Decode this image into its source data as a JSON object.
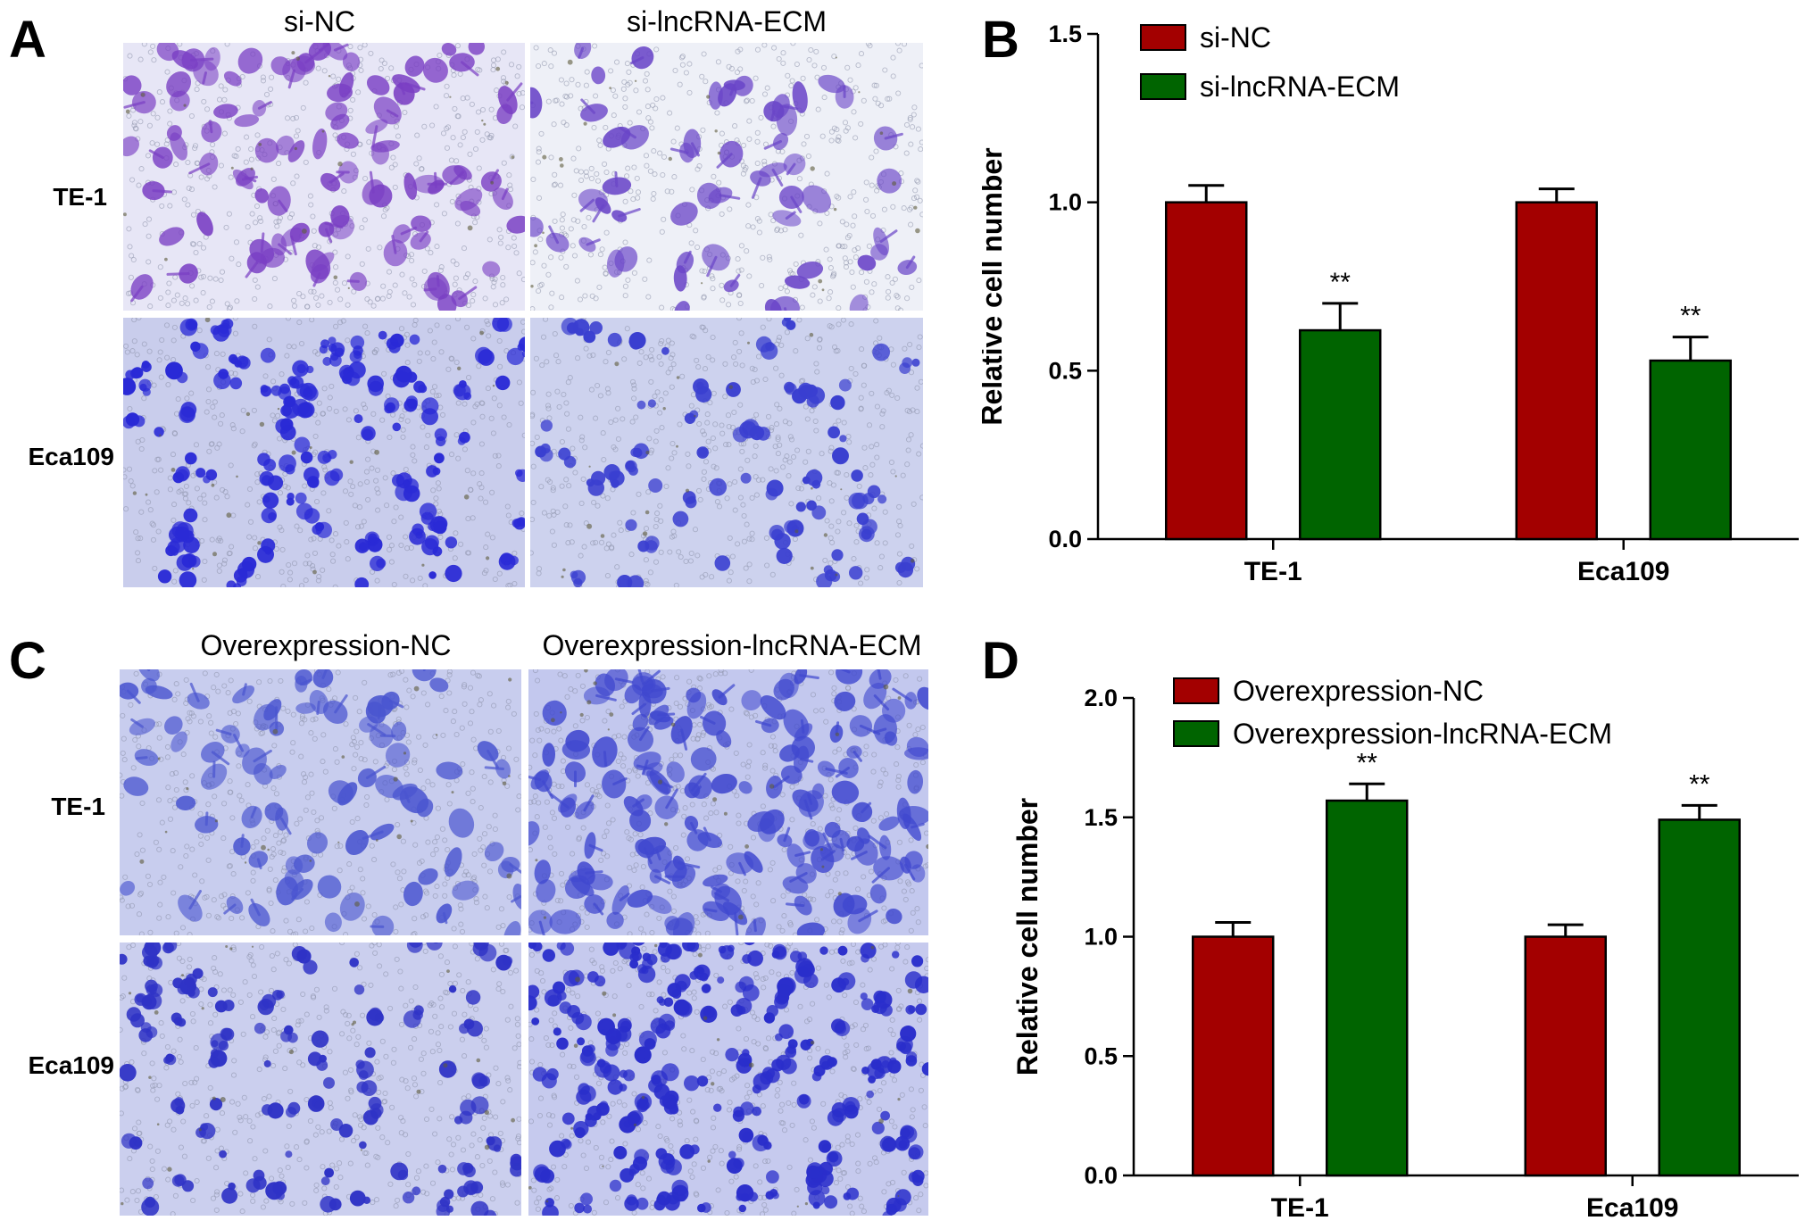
{
  "panel_letters": {
    "a": "A",
    "b": "B",
    "c": "C",
    "d": "D"
  },
  "panel_a": {
    "columns": [
      "si-NC",
      "si-lncRNA-ECM"
    ],
    "rows": [
      "TE-1",
      "Eca109"
    ],
    "micrographs": [
      {
        "name": "TE-1 si-NC",
        "stain": "#7a3fc4",
        "background": "#e7e6f6",
        "cell_count": 95,
        "style": "spread"
      },
      {
        "name": "TE-1 si-lncRNA-ECM",
        "stain": "#6a45c8",
        "background": "#eef0f7",
        "cell_count": 55,
        "style": "spread"
      },
      {
        "name": "Eca109 si-NC",
        "stain": "#2a2ad6",
        "background": "#c9cdec",
        "cell_count": 110,
        "style": "cluster"
      },
      {
        "name": "Eca109 si-lncRNA-ECM",
        "stain": "#3a3fd0",
        "background": "#cdd2ee",
        "cell_count": 60,
        "style": "cluster"
      }
    ]
  },
  "panel_c": {
    "columns": [
      "Overexpression-NC",
      "Overexpression-lncRNA-ECM"
    ],
    "rows": [
      "TE-1",
      "Eca109"
    ],
    "micrographs": [
      {
        "name": "TE-1 Overexpression-NC",
        "stain": "#4a55d0",
        "background": "#c8cdee",
        "cell_count": 80,
        "style": "spread"
      },
      {
        "name": "TE-1 Overexpression-lncRNA-ECM",
        "stain": "#4048cf",
        "background": "#c3c8ee",
        "cell_count": 150,
        "style": "spread"
      },
      {
        "name": "Eca109 Overexpression-NC",
        "stain": "#2f33c6",
        "background": "#cbcfee",
        "cell_count": 90,
        "style": "cluster"
      },
      {
        "name": "Eca109 Overexpression-lncRNA-ECM",
        "stain": "#2a2ecb",
        "background": "#c6caee",
        "cell_count": 170,
        "style": "cluster"
      }
    ]
  },
  "chart_data": [
    {
      "panel": "B",
      "type": "bar",
      "categories": [
        "TE-1",
        "Eca109"
      ],
      "series": [
        {
          "name": "si-NC",
          "color": "#a30000",
          "values": [
            1.0,
            1.0
          ],
          "errors": [
            0.05,
            0.04
          ],
          "annotations": [
            "",
            ""
          ]
        },
        {
          "name": "si-lncRNA-ECM",
          "color": "#006400",
          "values": [
            0.62,
            0.53
          ],
          "errors": [
            0.08,
            0.07
          ],
          "annotations": [
            "**",
            "**"
          ]
        }
      ],
      "xlabel": "",
      "ylabel": "Relative cell number",
      "ylim": [
        0,
        1.5
      ],
      "yticks": [
        0.0,
        0.5,
        1.0,
        1.5
      ],
      "ytick_labels": [
        "0.0",
        "0.5",
        "1.0",
        "1.5"
      ],
      "legend": "top-left",
      "grid": false
    },
    {
      "panel": "D",
      "type": "bar",
      "categories": [
        "TE-1",
        "Eca109"
      ],
      "series": [
        {
          "name": "Overexpression-NC",
          "color": "#a30000",
          "values": [
            1.0,
            1.0
          ],
          "errors": [
            0.06,
            0.05
          ],
          "annotations": [
            "",
            ""
          ]
        },
        {
          "name": "Overexpression-lncRNA-ECM",
          "color": "#006400",
          "values": [
            1.57,
            1.49
          ],
          "errors": [
            0.07,
            0.06
          ],
          "annotations": [
            "**",
            "**"
          ]
        }
      ],
      "xlabel": "",
      "ylabel": "Relative cell number",
      "ylim": [
        0,
        2.0
      ],
      "yticks": [
        0.0,
        0.5,
        1.0,
        1.5,
        2.0
      ],
      "ytick_labels": [
        "0.0",
        "0.5",
        "1.0",
        "1.5",
        "2.0"
      ],
      "legend": "top-left",
      "grid": false
    }
  ]
}
